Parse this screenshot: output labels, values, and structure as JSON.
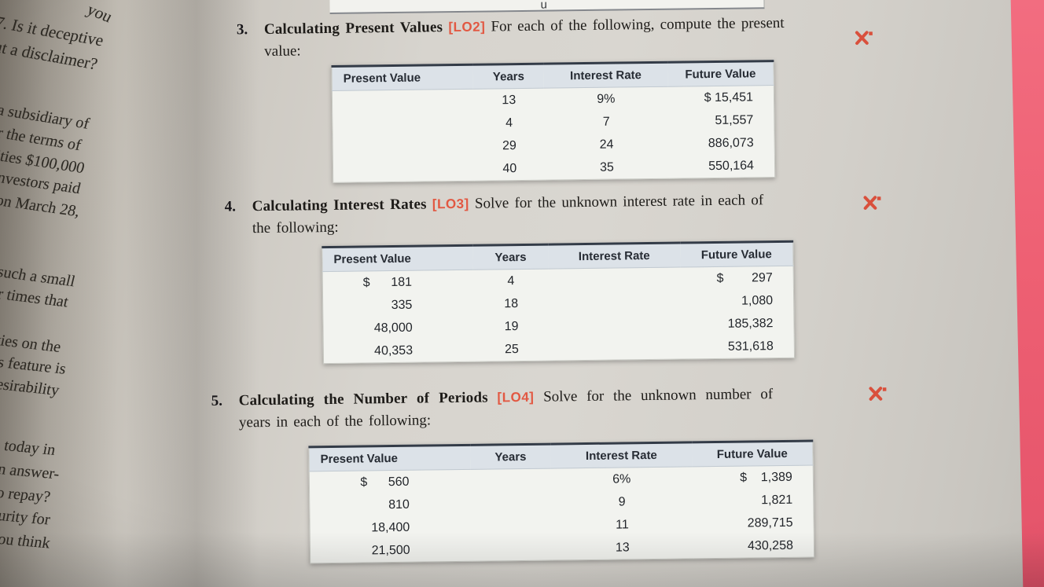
{
  "colors": {
    "lo_tag": "#e25842",
    "icon_red": "#d9503c",
    "table_header_bg": "#dce2e8",
    "desk_pink": "#ee6073"
  },
  "page_top": {
    "clipped_text": "u"
  },
  "left_page": {
    "lines": [
      "you",
      "7. Is it deceptive",
      "ut a disclaimer?",
      "a subsidiary of",
      "r the terms of",
      "ities $100,000",
      "nvestors paid",
      "on March 28,",
      "such a small",
      "r times that",
      "ties on the",
      "s feature is",
      "esirability",
      "today in",
      "n answer-",
      "o repay?",
      "urity for",
      "ou think"
    ]
  },
  "problems": [
    {
      "number": "3.",
      "title": "Calculating Present Values",
      "lo": "[LO2]",
      "lead": "For each of the following, compute the present",
      "lead2": "value:",
      "table": {
        "headers": [
          "Present Value",
          "Years",
          "Interest Rate",
          "Future Value"
        ],
        "rows": [
          [
            "",
            "13",
            "9%",
            "$ 15,451"
          ],
          [
            "",
            "4",
            "7",
            "51,557"
          ],
          [
            "",
            "29",
            "24",
            "886,073"
          ],
          [
            "",
            "40",
            "35",
            "550,164"
          ]
        ]
      }
    },
    {
      "number": "4.",
      "title": "Calculating Interest Rates",
      "lo": "[LO3]",
      "lead": "Solve for the unknown interest rate in each of",
      "lead2": "the following:",
      "table": {
        "headers": [
          "Present Value",
          "Years",
          "Interest Rate",
          "Future Value"
        ],
        "rows": [
          [
            "$      181",
            "4",
            "",
            "$        297"
          ],
          [
            "335",
            "18",
            "",
            "1,080"
          ],
          [
            "48,000",
            "19",
            "",
            "185,382"
          ],
          [
            "40,353",
            "25",
            "",
            "531,618"
          ]
        ]
      }
    },
    {
      "number": "5.",
      "title": "Calculating the Number of Periods",
      "lo": "[LO4]",
      "lead": "Solve for the unknown number of",
      "lead2": "years in each of the following:",
      "table": {
        "headers": [
          "Present Value",
          "Years",
          "Interest Rate",
          "Future Value"
        ],
        "rows": [
          [
            "$      560",
            "",
            "6%",
            "$    1,389"
          ],
          [
            "810",
            "",
            "9",
            "1,821"
          ],
          [
            "18,400",
            "",
            "11",
            "289,715"
          ],
          [
            "21,500",
            "",
            "13",
            "430,258"
          ]
        ]
      }
    }
  ]
}
